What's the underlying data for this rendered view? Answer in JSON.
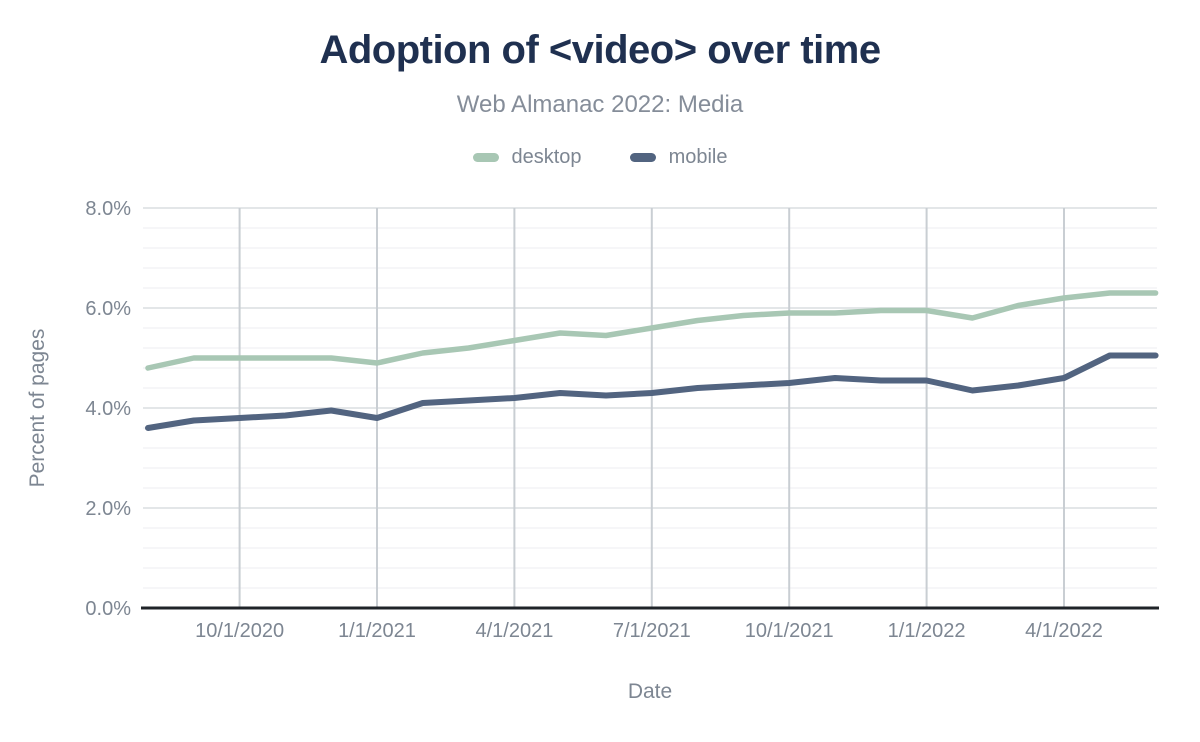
{
  "header": {
    "title": "Adoption of <video> over time",
    "subtitle": "Web Almanac 2022: Media"
  },
  "legend": {
    "items": [
      {
        "label": "desktop",
        "color": "#a8c7b4"
      },
      {
        "label": "mobile",
        "color": "#526480"
      }
    ]
  },
  "colors": {
    "title_text": "#1f3050",
    "subtitle_text": "#858d99",
    "axis_text": "#7d8692",
    "axis_line": "#1f2328",
    "grid_vertical": "#c9ced3",
    "grid_major": "#e3e6e8",
    "grid_minor": "#f3f4f5",
    "desktop_series": "#a8c7b4",
    "mobile_series": "#526480"
  },
  "chart_data": {
    "type": "line",
    "title": "Adoption of <video> over time",
    "subtitle": "Web Almanac 2022: Media",
    "xlabel": "Date",
    "ylabel": "Percent of pages",
    "grid": true,
    "legend_position": "top",
    "ylim": [
      0,
      8
    ],
    "y_major_step": 2,
    "y_minor_step": 0.4,
    "y_tick_labels": [
      "0.0%",
      "2.0%",
      "4.0%",
      "6.0%",
      "8.0%"
    ],
    "x": [
      "8/1/2020",
      "9/1/2020",
      "10/1/2020",
      "11/1/2020",
      "12/1/2020",
      "1/1/2021",
      "2/1/2021",
      "3/1/2021",
      "4/1/2021",
      "5/1/2021",
      "6/1/2021",
      "7/1/2021",
      "8/1/2021",
      "9/1/2021",
      "10/1/2021",
      "11/1/2021",
      "12/1/2021",
      "1/1/2022",
      "2/1/2022",
      "3/1/2022",
      "4/1/2022",
      "5/1/2022",
      "6/1/2022"
    ],
    "x_tick_indices": [
      2,
      5,
      8,
      11,
      14,
      17,
      20
    ],
    "x_tick_labels": [
      "10/1/2020",
      "1/1/2021",
      "4/1/2021",
      "7/1/2021",
      "10/1/2021",
      "1/1/2022",
      "4/1/2022"
    ],
    "series": [
      {
        "name": "desktop",
        "color": "#a8c7b4",
        "values": [
          4.8,
          5.0,
          5.0,
          5.0,
          5.0,
          4.9,
          5.1,
          5.2,
          5.35,
          5.5,
          5.45,
          5.6,
          5.75,
          5.85,
          5.9,
          5.9,
          5.95,
          5.95,
          5.8,
          6.05,
          6.2,
          6.3,
          6.3
        ]
      },
      {
        "name": "mobile",
        "color": "#526480",
        "values": [
          3.6,
          3.75,
          3.8,
          3.85,
          3.95,
          3.8,
          4.1,
          4.15,
          4.2,
          4.3,
          4.25,
          4.3,
          4.4,
          4.45,
          4.5,
          4.6,
          4.55,
          4.55,
          4.35,
          4.45,
          4.6,
          5.05,
          5.05
        ]
      }
    ]
  }
}
